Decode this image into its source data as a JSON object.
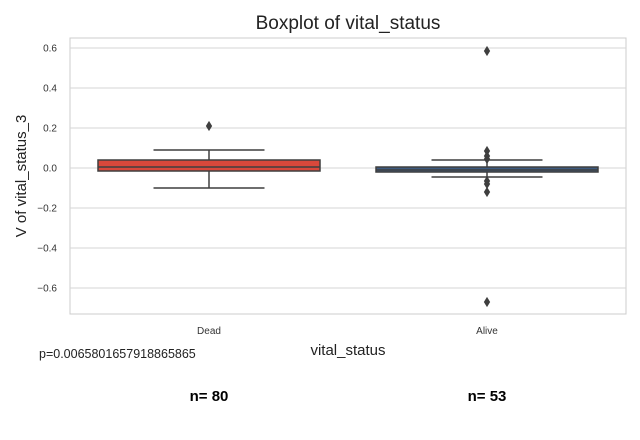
{
  "chart_data": {
    "type": "box",
    "title": "Boxplot of vital_status",
    "xlabel": "vital_status",
    "ylabel": "V of vital_status_3",
    "ylim": [
      -0.73,
      0.65
    ],
    "yticks": [
      0.6,
      0.4,
      0.2,
      0.0,
      -0.2,
      -0.4,
      -0.6
    ],
    "ytick_labels": [
      "0.6",
      "0.4",
      "0.2",
      "0.0",
      "−0.2",
      "−0.4",
      "−0.6"
    ],
    "grid": "horizontal",
    "categories": [
      "Dead",
      "Alive"
    ],
    "boxes": [
      {
        "category": "Dead",
        "color": "#d9483b",
        "whisker_low": -0.1,
        "q1": -0.015,
        "median": 0.005,
        "q3": 0.04,
        "whisker_high": 0.09,
        "outliers": [
          0.21
        ],
        "n_label": "n= 80"
      },
      {
        "category": "Alive",
        "color": "#3d5a80",
        "whisker_low": -0.045,
        "q1": -0.02,
        "median": -0.01,
        "q3": 0.005,
        "whisker_high": 0.04,
        "outliers": [
          0.585,
          0.085,
          0.06,
          0.045,
          -0.065,
          -0.08,
          -0.12,
          -0.67
        ],
        "n_label": "n= 53"
      }
    ]
  },
  "annotations": {
    "p_value": "p=0.0065801657918865865"
  }
}
